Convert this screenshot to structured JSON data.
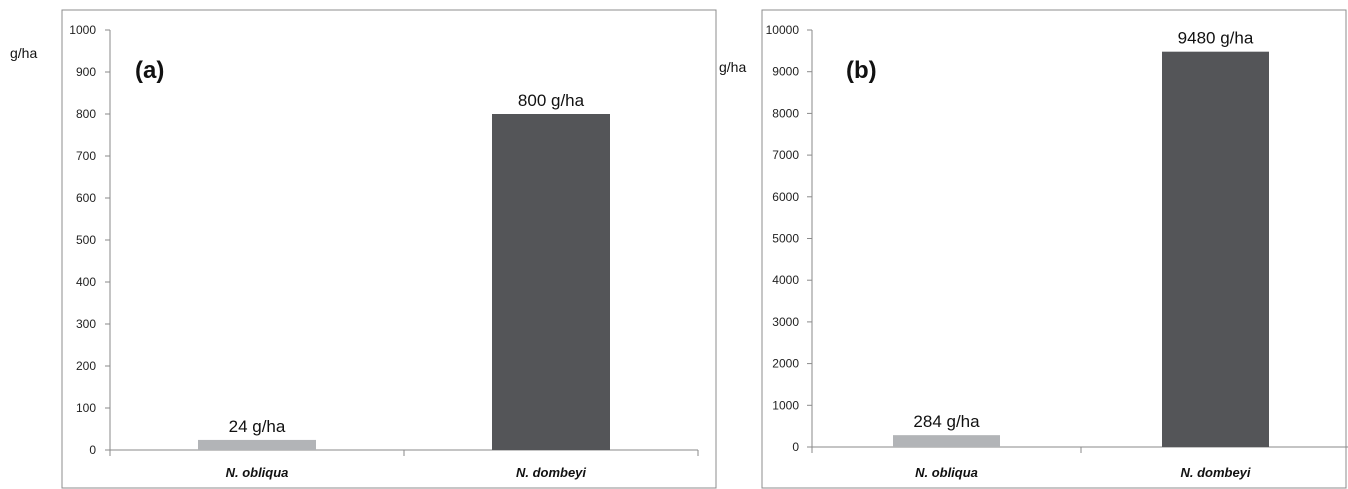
{
  "chart_data": [
    {
      "type": "bar",
      "panel_label": "(a)",
      "ylabel": "g/ha",
      "categories": [
        "N. obliqua",
        "N. dombeyi"
      ],
      "values": [
        24,
        800
      ],
      "data_labels": [
        "24 g/ha",
        "800 g/ha"
      ],
      "bar_colors": [
        "#b2b4b7",
        "#545558"
      ],
      "ylim": [
        0,
        1000
      ],
      "yticks": [
        0,
        100,
        200,
        300,
        400,
        500,
        600,
        700,
        800,
        900,
        1000
      ],
      "grid": false,
      "legend": "none"
    },
    {
      "type": "bar",
      "panel_label": "(b)",
      "ylabel": "g/ha",
      "categories": [
        "N. obliqua",
        "N. dombeyi"
      ],
      "values": [
        284,
        9480
      ],
      "data_labels": [
        "284 g/ha",
        "9480 g/ha"
      ],
      "bar_colors": [
        "#b2b4b7",
        "#545558"
      ],
      "ylim": [
        0,
        10000
      ],
      "yticks": [
        0,
        1000,
        2000,
        3000,
        4000,
        5000,
        6000,
        7000,
        8000,
        9000,
        10000
      ],
      "grid": false,
      "legend": "none"
    }
  ]
}
